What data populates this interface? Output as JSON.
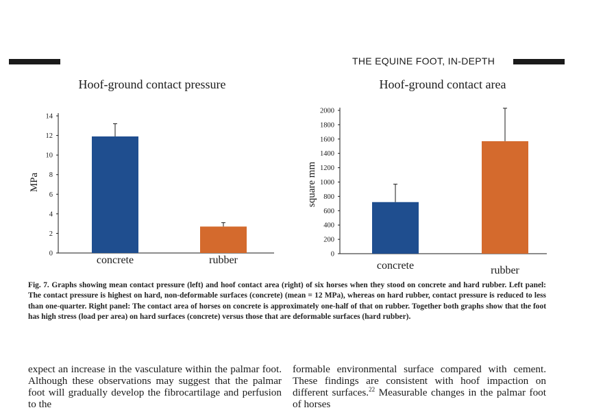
{
  "header": {
    "title": "THE EQUINE FOOT, IN-DEPTH"
  },
  "chart_data": [
    {
      "type": "bar",
      "title": "Hoof-ground contact pressure",
      "xlabel": "",
      "ylabel": "MPa",
      "ylim": [
        0,
        14
      ],
      "yticks": [
        0,
        2,
        4,
        6,
        8,
        10,
        12,
        14
      ],
      "categories": [
        "concrete",
        "rubber"
      ],
      "values": [
        11.9,
        2.7
      ],
      "errors": [
        1.3,
        0.4
      ],
      "colors": [
        "#1f4e8f",
        "#d46a2d"
      ],
      "grid": false,
      "legend": "none"
    },
    {
      "type": "bar",
      "title": "Hoof-ground contact area",
      "xlabel": "",
      "ylabel": "square mm",
      "ylim": [
        0,
        2000
      ],
      "yticks": [
        0,
        200,
        400,
        600,
        800,
        1000,
        1200,
        1400,
        1600,
        1800,
        2000
      ],
      "categories": [
        "concrete",
        "rubber"
      ],
      "values": [
        720,
        1570
      ],
      "errors": [
        250,
        460
      ],
      "colors": [
        "#1f4e8f",
        "#d46a2d"
      ],
      "grid": false,
      "legend": "none"
    }
  ],
  "caption": {
    "label": "Fig. 7.",
    "text": "Graphs showing mean contact pressure (left) and hoof contact area (right) of six horses when they stood on concrete and hard rubber. Left panel: The contact pressure is highest on hard, non-deformable surfaces (concrete) (mean = 12 MPa), whereas on hard rubber, contact pressure is reduced to less than one-quarter. Right panel: The contact area of horses on concrete is approximately one-half of that on rubber. Together both graphs show that the foot has high stress (load per area) on hard surfaces (concrete) versus those that are deformable surfaces (hard rubber)."
  },
  "body": {
    "left": "expect an increase in the vasculature within the palmar foot. Although these observations may suggest that the palmar foot will gradually develop the fibrocartilage and perfusion to the",
    "right_pre": "formable environmental surface compared with cement. These findings are consistent with hoof impaction on different surfaces.",
    "right_ref": "22",
    "right_post": " Measurable changes in the palmar foot of horses"
  }
}
